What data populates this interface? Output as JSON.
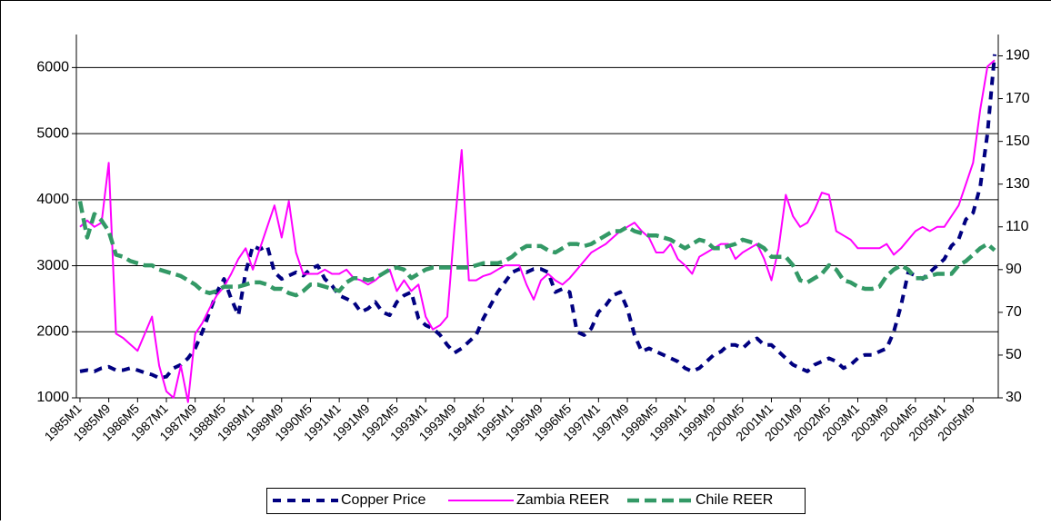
{
  "chart_data": {
    "type": "line",
    "categories": [
      "1985M1",
      null,
      null,
      null,
      "1985M9",
      null,
      null,
      null,
      "1986M5",
      null,
      null,
      null,
      "1987M1",
      null,
      null,
      null,
      "1987M9",
      null,
      null,
      null,
      "1988M5",
      null,
      null,
      null,
      "1989M1",
      null,
      null,
      null,
      "1989M9",
      null,
      null,
      null,
      "1990M5",
      null,
      null,
      null,
      "1991M1",
      null,
      null,
      null,
      "1991M9",
      null,
      null,
      null,
      "1992M5",
      null,
      null,
      null,
      "1993M1",
      null,
      null,
      null,
      "1993M9",
      null,
      null,
      null,
      "1994M5",
      null,
      null,
      null,
      "1995M1",
      null,
      null,
      null,
      "1995M9",
      null,
      null,
      null,
      "1996M5",
      null,
      null,
      null,
      "1997M1",
      null,
      null,
      null,
      "1997M9",
      null,
      null,
      null,
      "1998M5",
      null,
      null,
      null,
      "1999M1",
      null,
      null,
      null,
      "1999M9",
      null,
      null,
      null,
      "2000M5",
      null,
      null,
      null,
      "2001M1",
      null,
      null,
      null,
      "2001M9",
      null,
      null,
      null,
      "2002M5",
      null,
      null,
      null,
      "2003M1",
      null,
      null,
      null,
      "2003M9",
      null,
      null,
      null,
      "2004M5",
      null,
      null,
      null,
      "2005M1",
      null,
      null,
      null,
      "2005M9",
      null,
      null,
      null
    ],
    "series": [
      {
        "name": "Copper Price",
        "color": "#000080",
        "axis": "y",
        "values": [
          1400,
          1420,
          1400,
          1450,
          1470,
          1420,
          1420,
          1450,
          1420,
          1380,
          1350,
          1300,
          1320,
          1450,
          1500,
          1600,
          1750,
          2000,
          2300,
          2600,
          2800,
          2500,
          2250,
          2900,
          3300,
          3250,
          3300,
          2900,
          2800,
          2850,
          2900,
          2850,
          2950,
          3000,
          2800,
          2700,
          2550,
          2500,
          2450,
          2300,
          2350,
          2450,
          2300,
          2250,
          2450,
          2550,
          2600,
          2200,
          2100,
          2050,
          1950,
          1800,
          1680,
          1750,
          1850,
          1950,
          2200,
          2400,
          2600,
          2750,
          2900,
          2950,
          2900,
          2950,
          2950,
          2900,
          2600,
          2650,
          2600,
          2000,
          1950,
          2050,
          2300,
          2400,
          2550,
          2600,
          2350,
          1950,
          1700,
          1750,
          1700,
          1650,
          1600,
          1550,
          1450,
          1400,
          1450,
          1550,
          1650,
          1700,
          1800,
          1800,
          1750,
          1850,
          1900,
          1800,
          1800,
          1700,
          1600,
          1500,
          1450,
          1400,
          1500,
          1550,
          1600,
          1550,
          1450,
          1500,
          1600,
          1650,
          1650,
          1700,
          1750,
          2000,
          2400,
          2900,
          2850,
          2800,
          2900,
          3000,
          3100,
          3300,
          3400,
          3700,
          3800,
          4200,
          5000,
          6200
        ]
      },
      {
        "name": "Zambia REER",
        "color": "#ff00ff",
        "axis": "y2",
        "values": [
          110,
          113,
          110,
          112,
          140,
          60,
          58,
          55,
          52,
          60,
          68,
          45,
          33,
          30,
          45,
          28,
          60,
          65,
          72,
          78,
          82,
          88,
          95,
          100,
          90,
          100,
          110,
          120,
          105,
          122,
          98,
          88,
          88,
          88,
          90,
          88,
          88,
          90,
          86,
          85,
          83,
          85,
          88,
          90,
          80,
          85,
          80,
          83,
          68,
          62,
          64,
          68,
          110,
          146,
          85,
          85,
          87,
          88,
          90,
          92,
          92,
          92,
          83,
          76,
          85,
          88,
          85,
          83,
          86,
          90,
          94,
          98,
          100,
          102,
          105,
          108,
          110,
          112,
          108,
          105,
          98,
          98,
          102,
          95,
          92,
          88,
          96,
          98,
          100,
          102,
          102,
          95,
          98,
          100,
          102,
          95,
          85,
          100,
          125,
          115,
          110,
          112,
          118,
          126,
          125,
          108,
          106,
          104,
          100,
          100,
          100,
          100,
          102,
          97,
          100,
          104,
          108,
          110,
          108,
          110,
          110,
          115,
          120,
          130,
          140,
          165,
          185,
          188
        ]
      },
      {
        "name": "Chile REER",
        "color": "#339966",
        "axis": "y2",
        "values": [
          122,
          105,
          116,
          113,
          108,
          97,
          96,
          94,
          93,
          92,
          92,
          90,
          89,
          88,
          87,
          85,
          83,
          80,
          79,
          80,
          82,
          82,
          82,
          83,
          84,
          84,
          83,
          81,
          81,
          79,
          78,
          80,
          83,
          83,
          82,
          81,
          80,
          84,
          86,
          86,
          85,
          86,
          88,
          90,
          91,
          90,
          86,
          88,
          90,
          91,
          91,
          91,
          91,
          91,
          91,
          92,
          93,
          93,
          93,
          94,
          96,
          99,
          101,
          101,
          101,
          99,
          98,
          100,
          102,
          102,
          101,
          102,
          104,
          106,
          108,
          108,
          110,
          108,
          107,
          106,
          106,
          105,
          104,
          102,
          100,
          102,
          104,
          103,
          100,
          100,
          101,
          102,
          104,
          103,
          102,
          100,
          96,
          96,
          96,
          92,
          85,
          84,
          86,
          88,
          92,
          90,
          85,
          84,
          82,
          81,
          81,
          82,
          87,
          90,
          92,
          90,
          86,
          86,
          87,
          88,
          88,
          88,
          92,
          94,
          97,
          100,
          102,
          99
        ]
      }
    ],
    "ylim": [
      1000,
      6500
    ],
    "yticks": [
      1000,
      2000,
      3000,
      4000,
      5000,
      6000
    ],
    "y2lim": [
      30,
      200
    ],
    "y2ticks": [
      30,
      50,
      70,
      90,
      110,
      130,
      150,
      170,
      190
    ],
    "grid": true,
    "legend": "bottom"
  }
}
